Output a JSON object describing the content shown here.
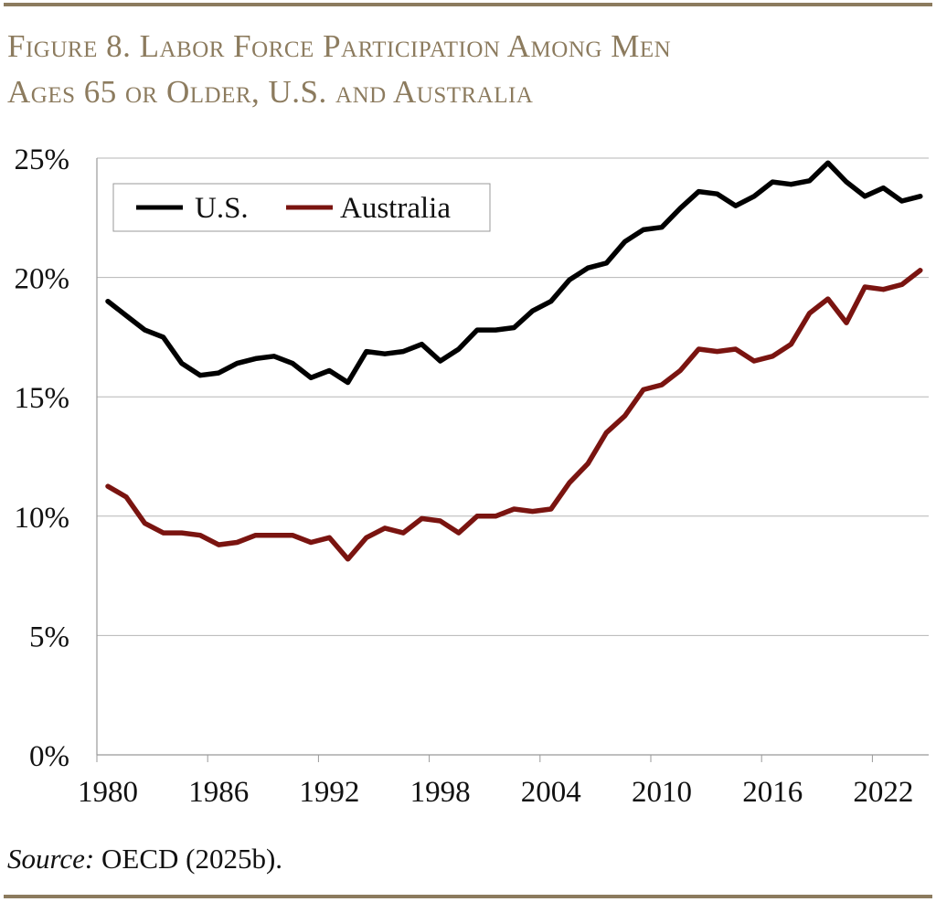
{
  "title_lines": [
    "Figure 8. Labor Force Participation Among Men",
    "Ages 65 or Older, U.S. and Australia"
  ],
  "source_label": "Source:",
  "source_text": " OECD (2025b).",
  "colors": {
    "accent": "#8c7b5e",
    "us": "#000000",
    "australia": "#7a1410"
  },
  "chart_data": {
    "type": "line",
    "title": "Figure 8. Labor Force Participation Among Men Ages 65 or Older, U.S. and Australia",
    "x": [
      1980,
      1981,
      1982,
      1983,
      1984,
      1985,
      1986,
      1987,
      1988,
      1989,
      1990,
      1991,
      1992,
      1993,
      1994,
      1995,
      1996,
      1997,
      1998,
      1999,
      2000,
      2001,
      2002,
      2003,
      2004,
      2005,
      2006,
      2007,
      2008,
      2009,
      2010,
      2011,
      2012,
      2013,
      2014,
      2015,
      2016,
      2017,
      2018,
      2019,
      2020,
      2021,
      2022,
      2023,
      2024
    ],
    "series": [
      {
        "name": "U.S.",
        "color": "#000000",
        "values": [
          19.0,
          18.4,
          17.8,
          17.5,
          16.4,
          15.9,
          16.0,
          16.4,
          16.6,
          16.7,
          16.4,
          15.8,
          16.1,
          15.6,
          16.9,
          16.8,
          16.9,
          17.2,
          16.5,
          17.0,
          17.8,
          17.8,
          17.9,
          18.6,
          19.0,
          19.9,
          20.4,
          20.6,
          21.5,
          22.0,
          22.1,
          22.9,
          23.6,
          23.5,
          23.0,
          23.4,
          24.0,
          23.9,
          24.05,
          24.8,
          24.0,
          23.4,
          23.75,
          23.2,
          23.4
        ]
      },
      {
        "name": "Australia",
        "color": "#7a1410",
        "values": [
          11.25,
          10.8,
          9.7,
          9.3,
          9.3,
          9.2,
          8.8,
          8.9,
          9.2,
          9.2,
          9.2,
          8.9,
          9.1,
          8.2,
          9.1,
          9.5,
          9.3,
          9.9,
          9.8,
          9.3,
          10.0,
          10.0,
          10.3,
          10.2,
          10.3,
          11.4,
          12.2,
          13.5,
          14.2,
          15.3,
          15.5,
          16.1,
          17.0,
          16.9,
          17.0,
          16.5,
          16.7,
          17.2,
          18.5,
          19.1,
          18.1,
          19.6,
          19.5,
          19.7,
          20.3
        ]
      }
    ],
    "xtick_labels": [
      "1980",
      "1986",
      "1992",
      "1998",
      "2004",
      "2010",
      "2016",
      "2022"
    ],
    "ytick_labels": [
      "0%",
      "5%",
      "10%",
      "15%",
      "20%",
      "25%"
    ],
    "yticks": [
      0,
      5,
      10,
      15,
      20,
      25
    ],
    "ylim": [
      0,
      25
    ],
    "xlabel": "",
    "ylabel": "",
    "grid": "horizontal",
    "legend": "top-left"
  }
}
